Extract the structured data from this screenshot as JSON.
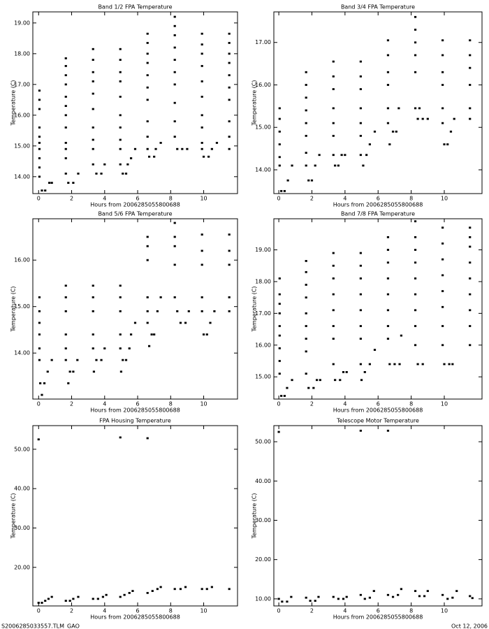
{
  "chart_data": [
    {
      "type": "scatter",
      "title": "Band 1/2 FPA Temperature",
      "xlabel": "Hours from 2006285055800688",
      "ylabel": "Temperature (C)",
      "color": "#000000",
      "xlim": [
        -0.35,
        12.05
      ],
      "xticks": [
        0,
        2,
        4,
        6,
        8,
        10
      ],
      "ylim": [
        13.45,
        19.36
      ],
      "yticks": [
        {
          "value": 14,
          "label": "14.00"
        },
        {
          "value": 15,
          "label": "15.00"
        },
        {
          "value": 16,
          "label": "16.00"
        },
        {
          "value": 17,
          "label": "17.00"
        },
        {
          "value": 18,
          "label": "18.00"
        },
        {
          "value": 19,
          "label": "19.00"
        }
      ],
      "x": [
        0.05,
        0.05,
        0.05,
        0.05,
        0.05,
        0.05,
        0.05,
        0.05,
        0.05,
        0.05,
        0.2,
        0.4,
        0.65,
        0.8,
        1.65,
        1.65,
        1.65,
        1.65,
        1.65,
        1.65,
        1.65,
        1.65,
        1.65,
        1.65,
        1.65,
        1.65,
        1.8,
        2.1,
        2.4,
        3.3,
        3.3,
        3.3,
        3.3,
        3.3,
        3.3,
        3.3,
        3.3,
        3.3,
        3.3,
        3.5,
        3.8,
        4.0,
        4.95,
        4.95,
        4.95,
        4.95,
        4.95,
        4.95,
        4.95,
        4.95,
        4.95,
        4.95,
        5.1,
        5.3,
        5.4,
        5.6,
        5.85,
        6.6,
        6.6,
        6.6,
        6.6,
        6.6,
        6.6,
        6.6,
        6.6,
        6.6,
        6.6,
        6.7,
        7.0,
        7.1,
        7.4,
        8.25,
        8.25,
        8.25,
        8.25,
        8.25,
        8.25,
        8.25,
        8.25,
        8.25,
        8.25,
        8.4,
        8.7,
        9.0,
        9.9,
        9.9,
        9.9,
        9.9,
        9.9,
        9.9,
        9.9,
        9.9,
        9.9,
        9.9,
        10.0,
        10.3,
        10.5,
        10.8,
        11.55,
        11.55,
        11.55,
        11.55,
        11.55,
        11.55,
        11.55,
        11.55,
        11.55,
        11.55
      ],
      "values": [
        16.8,
        16.5,
        16.2,
        15.6,
        15.3,
        15.1,
        14.9,
        14.6,
        14.3,
        14.0,
        13.55,
        13.55,
        13.8,
        13.8,
        17.85,
        17.6,
        17.3,
        17.0,
        16.6,
        16.3,
        16.0,
        15.6,
        15.1,
        14.9,
        14.6,
        14.1,
        13.8,
        13.8,
        14.1,
        18.15,
        17.8,
        17.4,
        17.1,
        16.7,
        16.2,
        15.6,
        15.2,
        14.9,
        14.4,
        14.1,
        14.1,
        14.4,
        18.15,
        17.8,
        17.4,
        17.1,
        16.6,
        16.0,
        15.6,
        15.2,
        14.9,
        14.4,
        14.1,
        14.1,
        14.4,
        14.6,
        14.9,
        18.65,
        18.35,
        18.0,
        17.7,
        17.3,
        16.9,
        16.5,
        15.8,
        15.3,
        14.9,
        14.65,
        14.65,
        14.9,
        15.1,
        19.2,
        18.9,
        18.6,
        18.2,
        17.8,
        17.4,
        17.0,
        16.4,
        15.8,
        15.3,
        14.9,
        14.9,
        14.9,
        18.65,
        18.3,
        18.0,
        17.6,
        17.1,
        16.6,
        16.0,
        15.6,
        15.1,
        14.9,
        14.65,
        14.65,
        14.9,
        15.1,
        18.65,
        18.35,
        18.0,
        17.7,
        17.3,
        16.9,
        16.5,
        15.8,
        15.3,
        14.9
      ]
    },
    {
      "type": "scatter",
      "title": "Band 3/4 FPA Temperature",
      "xlabel": "Hours from 2006285055800688",
      "ylabel": "Temperature (C)",
      "color": "#000000",
      "xlim": [
        -0.3,
        12.28
      ],
      "xticks": [
        0,
        2,
        4,
        6,
        8,
        10
      ],
      "ylim": [
        13.44,
        17.72
      ],
      "yticks": [
        {
          "value": 14,
          "label": "14.00"
        },
        {
          "value": 15,
          "label": "15.00"
        },
        {
          "value": 16,
          "label": "16.00"
        },
        {
          "value": 17,
          "label": "17.00"
        }
      ],
      "x": [
        0.05,
        0.05,
        0.05,
        0.05,
        0.05,
        0.05,
        0.15,
        0.35,
        0.55,
        0.8,
        1.65,
        1.65,
        1.65,
        1.65,
        1.65,
        1.65,
        1.65,
        1.65,
        1.8,
        2.0,
        2.2,
        2.45,
        3.3,
        3.3,
        3.3,
        3.3,
        3.3,
        3.3,
        3.3,
        3.4,
        3.6,
        3.8,
        4.0,
        4.95,
        4.95,
        4.95,
        4.95,
        4.95,
        4.95,
        4.95,
        5.1,
        5.3,
        5.5,
        5.8,
        6.6,
        6.6,
        6.6,
        6.6,
        6.6,
        6.6,
        6.7,
        6.9,
        7.1,
        7.25,
        8.25,
        8.25,
        8.25,
        8.25,
        8.25,
        8.25,
        8.4,
        8.5,
        8.7,
        9.0,
        9.9,
        9.9,
        9.9,
        9.9,
        9.9,
        9.9,
        10.0,
        10.2,
        10.4,
        10.6,
        11.55,
        11.55,
        11.55,
        11.55,
        11.55,
        11.55
      ],
      "values": [
        15.45,
        15.2,
        14.9,
        14.6,
        14.3,
        14.1,
        13.5,
        13.5,
        13.75,
        14.1,
        16.3,
        16.0,
        15.7,
        15.4,
        15.1,
        14.8,
        14.4,
        14.1,
        13.75,
        13.75,
        14.1,
        14.35,
        16.55,
        16.2,
        15.9,
        15.45,
        15.1,
        14.8,
        14.35,
        14.1,
        14.1,
        14.35,
        14.35,
        16.55,
        16.2,
        15.9,
        15.45,
        15.1,
        14.8,
        14.35,
        14.1,
        14.35,
        14.6,
        14.9,
        17.05,
        16.7,
        16.3,
        16.0,
        15.45,
        15.1,
        14.6,
        14.9,
        14.9,
        15.45,
        17.6,
        17.3,
        17.0,
        16.7,
        16.3,
        15.45,
        15.2,
        15.45,
        15.2,
        15.2,
        17.05,
        16.7,
        16.3,
        16.0,
        15.45,
        15.1,
        14.6,
        14.6,
        14.9,
        15.2,
        17.05,
        16.7,
        16.4,
        16.0,
        15.45,
        15.2
      ]
    },
    {
      "type": "scatter",
      "title": "Band 5/6 FPA Temperature",
      "xlabel": "Hours from 2006285055800688",
      "ylabel": "Temperature (C)",
      "color": "#000000",
      "xlim": [
        -0.35,
        12.05
      ],
      "xticks": [
        0,
        2,
        4,
        6,
        8,
        10
      ],
      "ylim": [
        13.01,
        16.89
      ],
      "yticks": [
        {
          "value": 14,
          "label": "14.00"
        },
        {
          "value": 15,
          "label": "15.00"
        },
        {
          "value": 16,
          "label": "16.00"
        }
      ],
      "x": [
        0.05,
        0.05,
        0.05,
        0.05,
        0.05,
        0.05,
        0.1,
        0.2,
        0.35,
        0.55,
        0.8,
        1.65,
        1.65,
        1.65,
        1.65,
        1.65,
        1.65,
        1.8,
        1.9,
        2.1,
        2.35,
        3.3,
        3.3,
        3.3,
        3.3,
        3.3,
        3.35,
        3.5,
        3.8,
        4.0,
        4.95,
        4.95,
        4.95,
        4.95,
        4.95,
        5.0,
        5.1,
        5.3,
        5.5,
        5.6,
        5.85,
        6.6,
        6.6,
        6.6,
        6.6,
        6.6,
        6.6,
        6.7,
        6.85,
        7.0,
        7.2,
        7.4,
        8.25,
        8.25,
        8.25,
        8.25,
        8.25,
        8.4,
        8.6,
        8.9,
        9.1,
        9.9,
        9.9,
        9.9,
        9.9,
        9.9,
        10.0,
        10.2,
        10.4,
        10.65,
        11.55,
        11.55,
        11.55,
        11.55,
        11.55
      ],
      "values": [
        15.2,
        14.9,
        14.65,
        14.4,
        14.1,
        13.85,
        13.35,
        13.1,
        13.35,
        13.6,
        13.85,
        15.45,
        15.2,
        14.9,
        14.4,
        14.1,
        13.85,
        13.35,
        13.6,
        13.6,
        13.85,
        15.45,
        15.2,
        14.9,
        14.4,
        14.1,
        13.6,
        13.85,
        13.85,
        14.1,
        15.45,
        15.2,
        14.9,
        14.4,
        14.1,
        13.6,
        13.85,
        13.85,
        14.1,
        14.4,
        14.65,
        16.5,
        16.3,
        16.0,
        15.2,
        14.9,
        14.65,
        14.15,
        14.4,
        14.4,
        14.9,
        15.2,
        16.8,
        16.5,
        16.3,
        15.9,
        15.2,
        14.9,
        14.65,
        14.65,
        14.9,
        16.55,
        16.2,
        15.9,
        15.2,
        14.9,
        14.4,
        14.4,
        14.65,
        14.9,
        16.55,
        16.2,
        15.9,
        15.2,
        14.9
      ]
    },
    {
      "type": "scatter",
      "title": "Band 7/8 FPA Temperature",
      "xlabel": "Hours from 2006285055800688",
      "ylabel": "Temperature (C)",
      "color": "#000000",
      "xlim": [
        -0.3,
        12.28
      ],
      "xticks": [
        0,
        2,
        4,
        6,
        8,
        10
      ],
      "ylim": [
        14.3,
        19.98
      ],
      "yticks": [
        {
          "value": 15,
          "label": "15.00"
        },
        {
          "value": 16,
          "label": "16.00"
        },
        {
          "value": 17,
          "label": "17.00"
        },
        {
          "value": 18,
          "label": "18.00"
        },
        {
          "value": 19,
          "label": "19.00"
        }
      ],
      "x": [
        0.05,
        0.05,
        0.05,
        0.05,
        0.05,
        0.05,
        0.05,
        0.05,
        0.05,
        0.15,
        0.35,
        0.5,
        0.8,
        1.65,
        1.65,
        1.65,
        1.65,
        1.65,
        1.65,
        1.65,
        1.65,
        1.65,
        1.8,
        2.1,
        2.3,
        2.5,
        3.3,
        3.3,
        3.3,
        3.3,
        3.3,
        3.3,
        3.3,
        3.3,
        3.4,
        3.7,
        3.9,
        4.1,
        4.95,
        4.95,
        4.95,
        4.95,
        4.95,
        4.95,
        4.95,
        4.95,
        5.0,
        5.2,
        5.5,
        5.8,
        6.6,
        6.6,
        6.6,
        6.6,
        6.6,
        6.6,
        6.6,
        6.6,
        6.7,
        7.0,
        7.3,
        7.4,
        8.25,
        8.25,
        8.25,
        8.25,
        8.25,
        8.25,
        8.25,
        8.25,
        8.25,
        8.4,
        8.7,
        9.9,
        9.9,
        9.9,
        9.9,
        9.9,
        9.9,
        9.9,
        9.9,
        10.0,
        10.3,
        10.5,
        11.55,
        11.55,
        11.55,
        11.55,
        11.55,
        11.55,
        11.55,
        11.55,
        11.55
      ],
      "values": [
        18.1,
        17.6,
        17.3,
        17.0,
        16.6,
        16.3,
        15.9,
        15.5,
        15.1,
        14.4,
        14.4,
        14.65,
        14.9,
        18.65,
        18.3,
        17.9,
        17.5,
        17.0,
        16.6,
        16.2,
        15.8,
        15.1,
        14.65,
        14.65,
        14.9,
        14.9,
        18.9,
        18.5,
        18.1,
        17.6,
        17.1,
        16.6,
        16.2,
        15.4,
        14.9,
        14.9,
        15.15,
        15.15,
        18.9,
        18.5,
        18.1,
        17.6,
        17.1,
        16.6,
        16.2,
        15.4,
        14.9,
        15.15,
        15.4,
        15.85,
        19.4,
        19.0,
        18.6,
        18.1,
        17.6,
        17.1,
        16.6,
        16.2,
        15.4,
        15.4,
        15.4,
        16.3,
        19.9,
        19.4,
        19.0,
        18.6,
        18.1,
        17.6,
        17.1,
        16.6,
        16.0,
        15.4,
        15.4,
        19.7,
        19.2,
        18.7,
        18.2,
        17.7,
        17.2,
        16.6,
        16.0,
        15.4,
        15.4,
        15.4,
        19.7,
        19.4,
        19.1,
        18.6,
        18.1,
        17.6,
        17.1,
        16.6,
        16.0
      ]
    },
    {
      "type": "scatter",
      "title": "FPA Housing Temperature",
      "xlabel": "Hours from 2006285055800688",
      "ylabel": "Temperature (C)",
      "color": "#000000",
      "xlim": [
        -0.35,
        12.05
      ],
      "xticks": [
        0,
        2,
        4,
        6,
        8,
        10
      ],
      "ylim": [
        10.2,
        56.0
      ],
      "yticks": [
        {
          "value": 20,
          "label": "20.00"
        },
        {
          "value": 30,
          "label": "30.00"
        },
        {
          "value": 40,
          "label": "40.00"
        },
        {
          "value": 50,
          "label": "50.00"
        }
      ],
      "x": [
        0.0,
        0.2,
        0.4,
        0.6,
        0.8,
        1.65,
        1.9,
        2.1,
        2.4,
        3.3,
        3.6,
        3.9,
        4.1,
        4.95,
        5.2,
        5.5,
        5.7,
        6.6,
        6.9,
        7.2,
        7.4,
        8.25,
        8.6,
        8.9,
        9.9,
        10.2,
        10.5,
        11.55,
        0.0,
        4.95,
        6.6
      ],
      "values": [
        11,
        11,
        11.5,
        12,
        12.5,
        11.5,
        11.5,
        12,
        12.5,
        12,
        12,
        12.5,
        13,
        12.5,
        13,
        13.5,
        14,
        13.5,
        14,
        14.5,
        15,
        14.5,
        14.5,
        15,
        14.5,
        14.5,
        15,
        14.5,
        52.5,
        53,
        52.8
      ]
    },
    {
      "type": "scatter",
      "title": "Telescope Motor Temperature",
      "xlabel": "Hours from 2006285055800688",
      "ylabel": "Temperature (C)",
      "color": "#000000",
      "xlim": [
        -0.3,
        12.28
      ],
      "xticks": [
        0,
        2,
        4,
        6,
        8,
        10
      ],
      "ylim": [
        8.2,
        54.1
      ],
      "yticks": [
        {
          "value": 10,
          "label": "10.00"
        },
        {
          "value": 20,
          "label": "20.00"
        },
        {
          "value": 30,
          "label": "30.00"
        },
        {
          "value": 40,
          "label": "40.00"
        },
        {
          "value": 50,
          "label": "50.00"
        }
      ],
      "x": [
        0.0,
        0.2,
        0.5,
        0.75,
        1.65,
        1.9,
        2.2,
        2.4,
        3.3,
        3.6,
        3.9,
        4.1,
        4.95,
        5.2,
        5.5,
        5.75,
        6.6,
        6.9,
        7.2,
        7.4,
        8.25,
        8.5,
        8.8,
        9.0,
        9.9,
        10.2,
        10.5,
        10.75,
        11.55,
        11.7,
        0.0,
        4.95,
        6.6
      ],
      "values": [
        10,
        9.3,
        9.3,
        10.5,
        10.3,
        9.5,
        9.5,
        10.5,
        10.5,
        10,
        10,
        10.5,
        11,
        10,
        10.3,
        12,
        11,
        10.5,
        11,
        12.5,
        12,
        10.7,
        10.7,
        12,
        11,
        10,
        10.3,
        12,
        10.7,
        10.2,
        52.5,
        52.8,
        52.8
      ]
    }
  ],
  "footer": {
    "left": "S2006285033557.TLM_GAO",
    "right": "Oct 12, 2006"
  }
}
